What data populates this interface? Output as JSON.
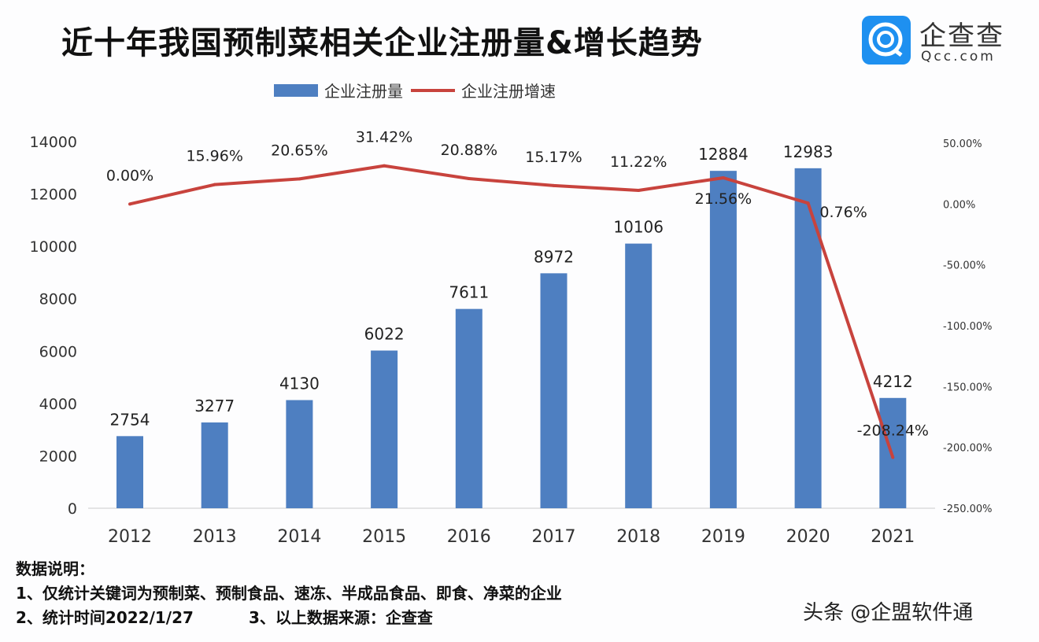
{
  "title": "近十年我国预制菜相关企业注册量&增长趋势",
  "brand": {
    "name": "企查查",
    "domain": "Qcc.com",
    "color": "#1e90f0"
  },
  "chart_data": {
    "type": "bar+line",
    "categories": [
      "2012",
      "2013",
      "2014",
      "2015",
      "2016",
      "2017",
      "2018",
      "2019",
      "2020",
      "2021"
    ],
    "series": [
      {
        "name": "企业注册量",
        "type": "bar",
        "axis": "left",
        "color": "#4e7fc1",
        "values": [
          2754,
          3277,
          4130,
          6022,
          7611,
          8972,
          10106,
          12884,
          12983,
          4212
        ],
        "labels": [
          "2754",
          "3277",
          "4130",
          "6022",
          "7611",
          "8972",
          "10106",
          "12884",
          "12983",
          "4212"
        ]
      },
      {
        "name": "企业注册增速",
        "type": "line",
        "axis": "right",
        "color": "#c8433d",
        "values": [
          0.0,
          15.96,
          20.65,
          31.42,
          20.88,
          15.17,
          11.22,
          21.56,
          0.76,
          -208.24
        ],
        "labels": [
          "0.00%",
          "15.96%",
          "20.65%",
          "31.42%",
          "20.88%",
          "15.17%",
          "11.22%",
          "21.56%",
          "0.76%",
          "-208.24%"
        ]
      }
    ],
    "y_left": {
      "range": [
        0,
        14000
      ],
      "ticks": [
        "0",
        "2000",
        "4000",
        "6000",
        "8000",
        "10000",
        "12000",
        "14000"
      ]
    },
    "y_right": {
      "range": [
        -250,
        50
      ],
      "ticks": [
        "50.00%",
        "0.00%",
        "-50.00%",
        "-100.00%",
        "-150.00%",
        "-200.00%",
        "-250.00%"
      ]
    },
    "legend": "top",
    "grid": false
  },
  "notes": {
    "heading": "数据说明：",
    "line1": "1、仅统计关键词为预制菜、预制食品、速冻、半成品食品、即食、净菜的企业",
    "line2a": "2、统计时间2022/1/27",
    "line2b": "3、以上数据来源：企查查"
  },
  "watermark": "头条 @企盟软件通"
}
